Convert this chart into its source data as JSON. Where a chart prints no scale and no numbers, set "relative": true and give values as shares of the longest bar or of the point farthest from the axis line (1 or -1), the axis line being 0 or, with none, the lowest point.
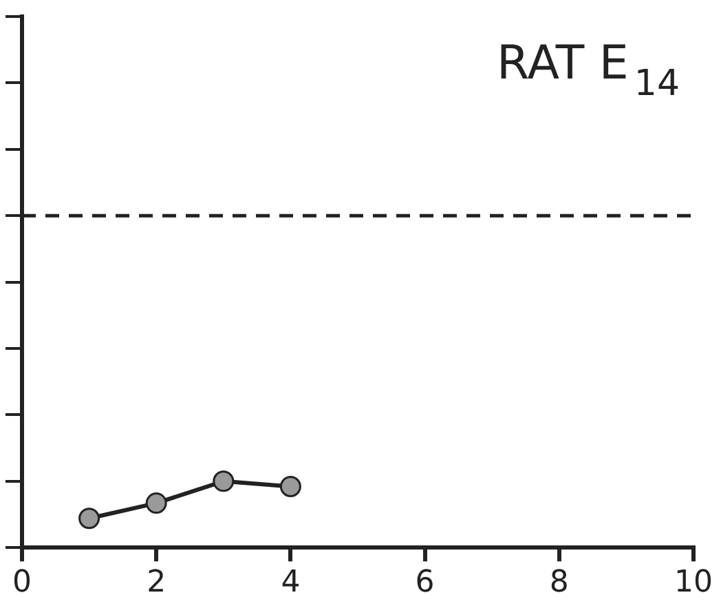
{
  "chart_data": {
    "type": "line",
    "title": "RAT E$_{14}$",
    "relative": true,
    "x": [
      1,
      2,
      3,
      4
    ],
    "xlim": [
      0,
      10
    ],
    "xticks": [
      0,
      2,
      4,
      6,
      8,
      10
    ],
    "series": [
      {
        "color": "#222222",
        "values": [
          0.44,
          0.67,
          1,
          0.92
        ]
      }
    ],
    "ref_lines": [
      {
        "axis": "y",
        "value": 5,
        "line_style": "dashed",
        "color": "#222222"
      }
    ],
    "marker": "circle",
    "line_style": "solid",
    "grid": false,
    "legend": false
  }
}
